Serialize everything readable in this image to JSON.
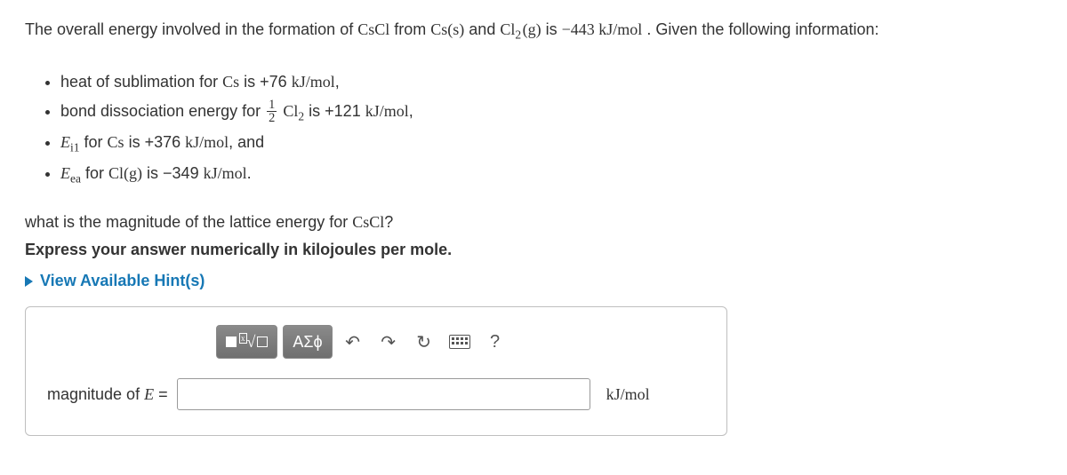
{
  "intro": {
    "t1": "The overall energy involved in the formation of ",
    "f1": "CsCl",
    "t2": " from ",
    "f2": "Cs(s)",
    "t3": " and ",
    "f3a": "Cl",
    "f3sub": "2",
    "f3b": "(g)",
    "t4": " is ",
    "val": "−443 kJ/mol",
    "t5": ". Given the following information:"
  },
  "bullets": {
    "b1a": "heat of sublimation for ",
    "b1f": "Cs",
    "b1b": " is +76 ",
    "b1u": "kJ/mol",
    "b1c": ",",
    "b2a": "bond dissociation energy for ",
    "b2frac_num": "1",
    "b2frac_den": "2",
    "b2f": "Cl",
    "b2sub": "2",
    "b2b": " is +121 ",
    "b2u": "kJ/mol",
    "b2c": ",",
    "b3var": "E",
    "b3sub": "i1",
    "b3a": " for ",
    "b3f": "Cs",
    "b3b": " is +376 ",
    "b3u": "kJ/mol",
    "b3c": ", and",
    "b4var": "E",
    "b4sub": "ea",
    "b4a": " for ",
    "b4f": "Cl(g)",
    "b4b": " is  −349 ",
    "b4u": "kJ/mol",
    "b4c": "."
  },
  "question": {
    "q1a": "what is the magnitude of the lattice energy for ",
    "q1f": "CsCl",
    "q1b": "?",
    "instr": "Express your answer numerically in kilojoules per mole."
  },
  "hints_label": "View Available Hint(s)",
  "toolbar": {
    "templates_tip": "Templates / square root",
    "symbols_label": "ΑΣϕ",
    "undo_tip": "Undo",
    "redo_tip": "Redo",
    "reset_tip": "Reset",
    "keyboard_tip": "Keyboard",
    "help_tip": "Help",
    "help_label": "?"
  },
  "answer": {
    "lhs_pre": "magnitude of  ",
    "lhs_var": "E",
    "lhs_post": " =",
    "value": "",
    "unit": "kJ/mol"
  },
  "colors": {
    "link": "#1778b5",
    "btn_bg_top": "#8a8a8a",
    "btn_bg_bot": "#6f6f6f",
    "border": "#bfbfbf"
  }
}
